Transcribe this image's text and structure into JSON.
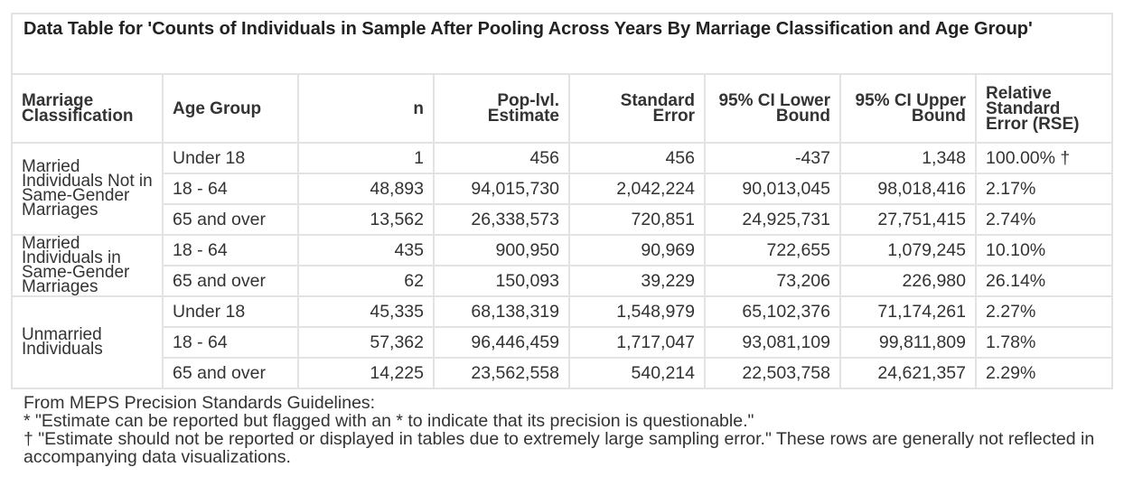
{
  "title": "Data Table for 'Counts of Individuals in Sample After Pooling Across Years By Marriage Classification and Age Group'",
  "columns": [
    "Marriage Classification",
    "Age Group",
    "n",
    "Pop-lvl. Estimate",
    "Standard Error",
    "95% CI Lower Bound",
    "95% CI Upper Bound",
    "Relative Standard Error (RSE)"
  ],
  "groups": [
    {
      "label": "Married Individuals Not in Same-Gender Marriages",
      "rows": [
        {
          "age": "Under 18",
          "n": "1",
          "est": "456",
          "se": "456",
          "lower": "-437",
          "upper": "1,348",
          "rse": "100.00% †"
        },
        {
          "age": "18 - 64",
          "n": "48,893",
          "est": "94,015,730",
          "se": "2,042,224",
          "lower": "90,013,045",
          "upper": "98,018,416",
          "rse": "2.17%"
        },
        {
          "age": "65 and over",
          "n": "13,562",
          "est": "26,338,573",
          "se": "720,851",
          "lower": "24,925,731",
          "upper": "27,751,415",
          "rse": "2.74%"
        }
      ]
    },
    {
      "label": "Married Individuals in Same-Gender Marriages",
      "rows": [
        {
          "age": "18 - 64",
          "n": "435",
          "est": "900,950",
          "se": "90,969",
          "lower": "722,655",
          "upper": "1,079,245",
          "rse": "10.10%"
        },
        {
          "age": "65 and over",
          "n": "62",
          "est": "150,093",
          "se": "39,229",
          "lower": "73,206",
          "upper": "226,980",
          "rse": "26.14%"
        }
      ]
    },
    {
      "label": "Unmarried Individuals",
      "rows": [
        {
          "age": "Under 18",
          "n": "45,335",
          "est": "68,138,319",
          "se": "1,548,979",
          "lower": "65,102,376",
          "upper": "71,174,261",
          "rse": "2.27%"
        },
        {
          "age": "18 - 64",
          "n": "57,362",
          "est": "96,446,459",
          "se": "1,717,047",
          "lower": "93,081,109",
          "upper": "99,811,809",
          "rse": "1.78%"
        },
        {
          "age": "65 and over",
          "n": "14,225",
          "est": "23,562,558",
          "se": "540,214",
          "lower": "22,503,758",
          "upper": "24,621,357",
          "rse": "2.29%"
        }
      ]
    }
  ],
  "footnotes": [
    "From MEPS Precision Standards Guidelines:",
    "* \"Estimate can be reported but flagged with an * to indicate that its precision is questionable.\"",
    "† \"Estimate should not be reported or displayed in tables due to extremely large sampling error.\" These rows are generally not reflected in accompanying data visualizations."
  ]
}
